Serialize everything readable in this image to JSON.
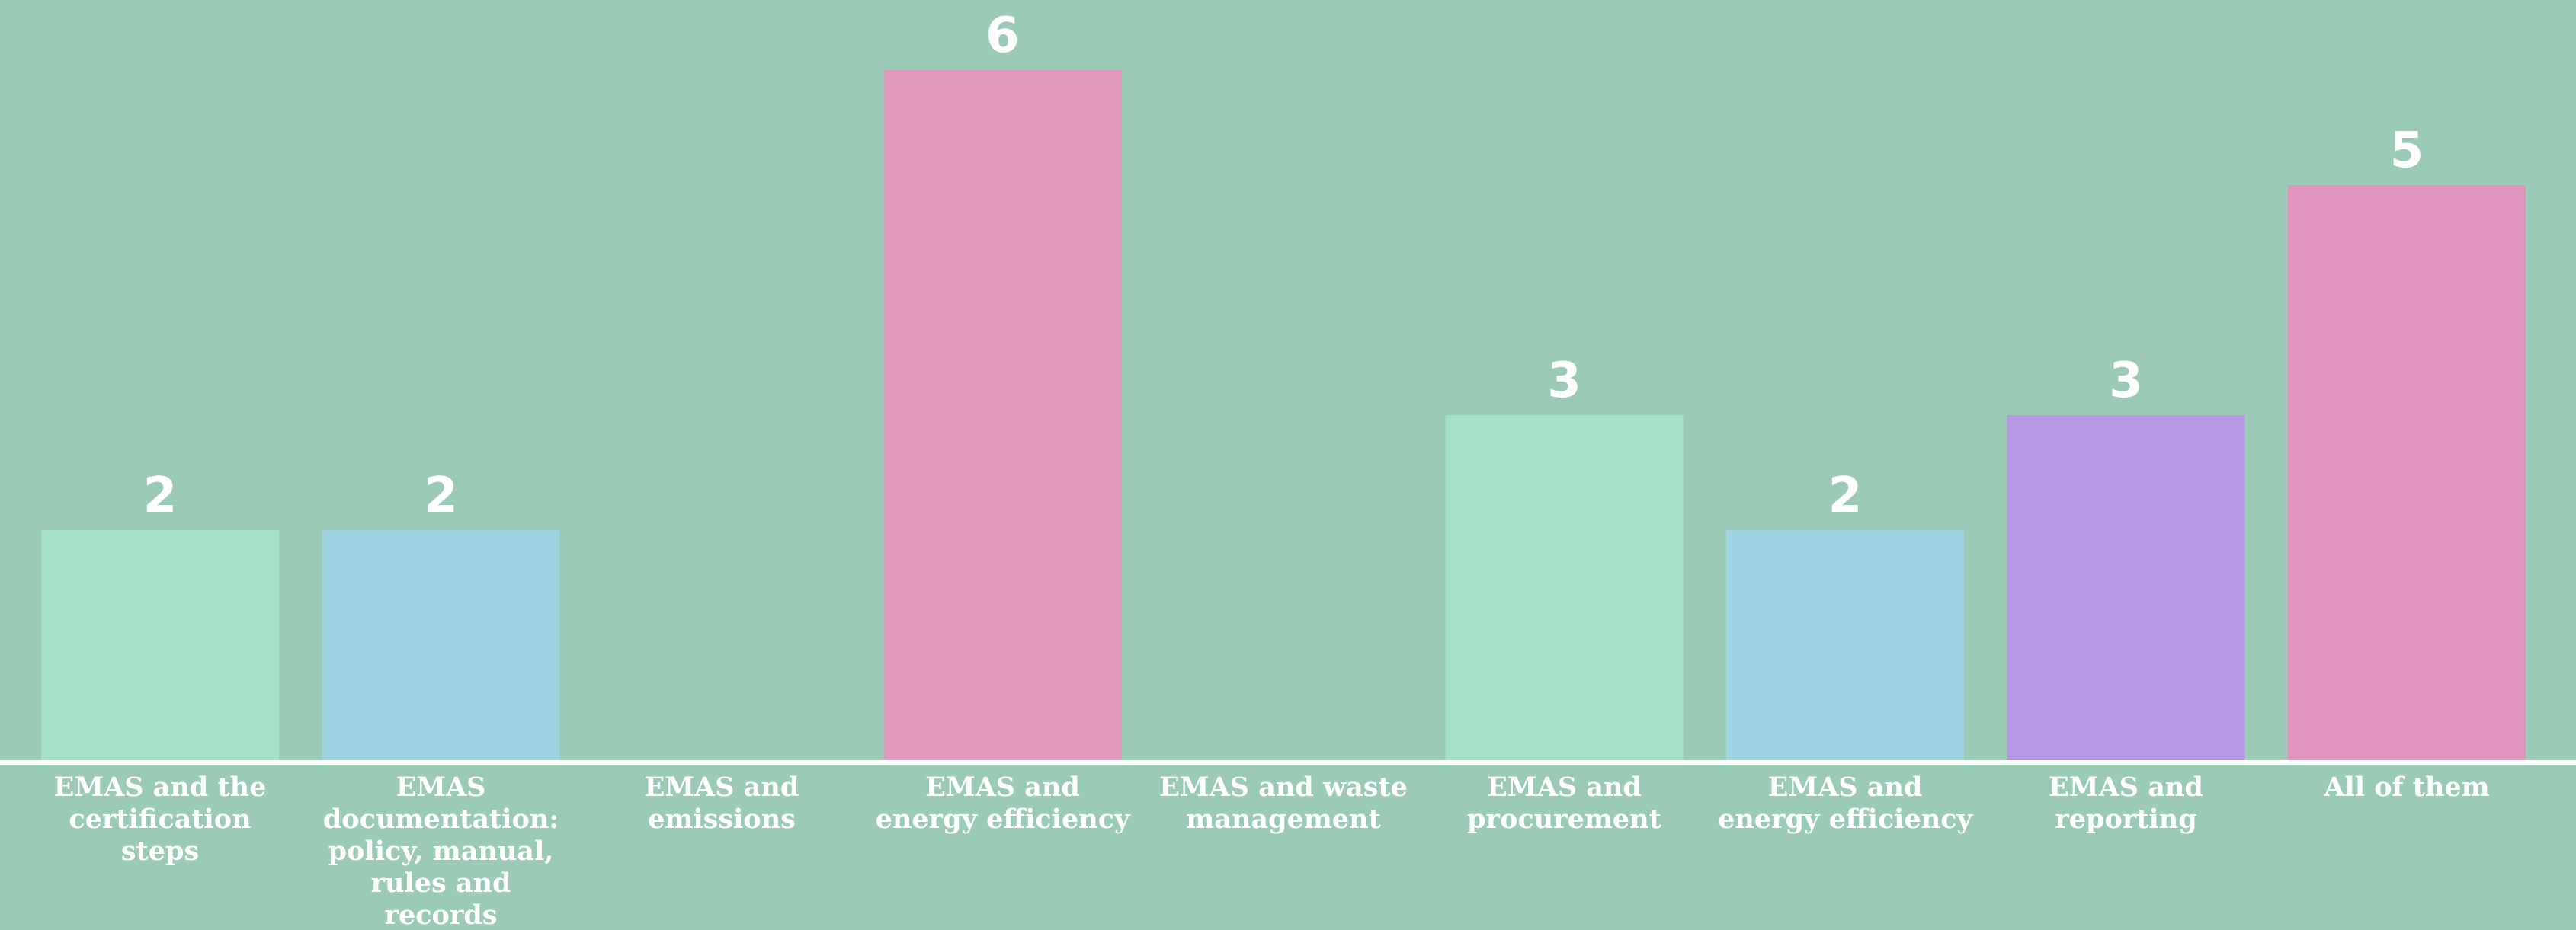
{
  "chart_data": {
    "type": "bar",
    "title": "",
    "xlabel": "",
    "ylabel": "",
    "ylim": [
      0,
      6.6
    ],
    "grid": false,
    "legend": "none",
    "categories": [
      "EMAS and the certification steps",
      "EMAS documentation: policy, manual, rules and records",
      "EMAS and emissions",
      "EMAS and energy efficiency",
      "EMAS and waste management",
      "EMAS and procurement",
      "EMAS and energy efficiency",
      "EMAS and reporting",
      "All of them"
    ],
    "category_lines": [
      [
        "EMAS and the",
        "certification",
        "steps"
      ],
      [
        "EMAS",
        "documentation:",
        "policy, manual,",
        "rules and",
        "records"
      ],
      [
        "EMAS and",
        "emissions"
      ],
      [
        "EMAS and",
        "energy efficiency"
      ],
      [
        "EMAS and waste",
        "management"
      ],
      [
        "EMAS and",
        "procurement"
      ],
      [
        "EMAS and",
        "energy efficiency"
      ],
      [
        "EMAS and",
        "reporting"
      ],
      [
        "All of them"
      ]
    ],
    "values": [
      2,
      2,
      0,
      6,
      0,
      3,
      2,
      3,
      5
    ],
    "value_labels": [
      "2",
      "2",
      "",
      "6",
      "",
      "3",
      "2",
      "3",
      "5"
    ],
    "bar_colors": [
      "#a6dfc7",
      "#9fd3e4",
      "#9bcbb6",
      "#df99bd",
      "#9bcbb6",
      "#a6dfc7",
      "#9fd3e4",
      "#b599e5",
      "#df95bb"
    ],
    "background_color": "#9bcbb6",
    "axis_color": "#ffffff",
    "text_color": "#ffffff"
  }
}
